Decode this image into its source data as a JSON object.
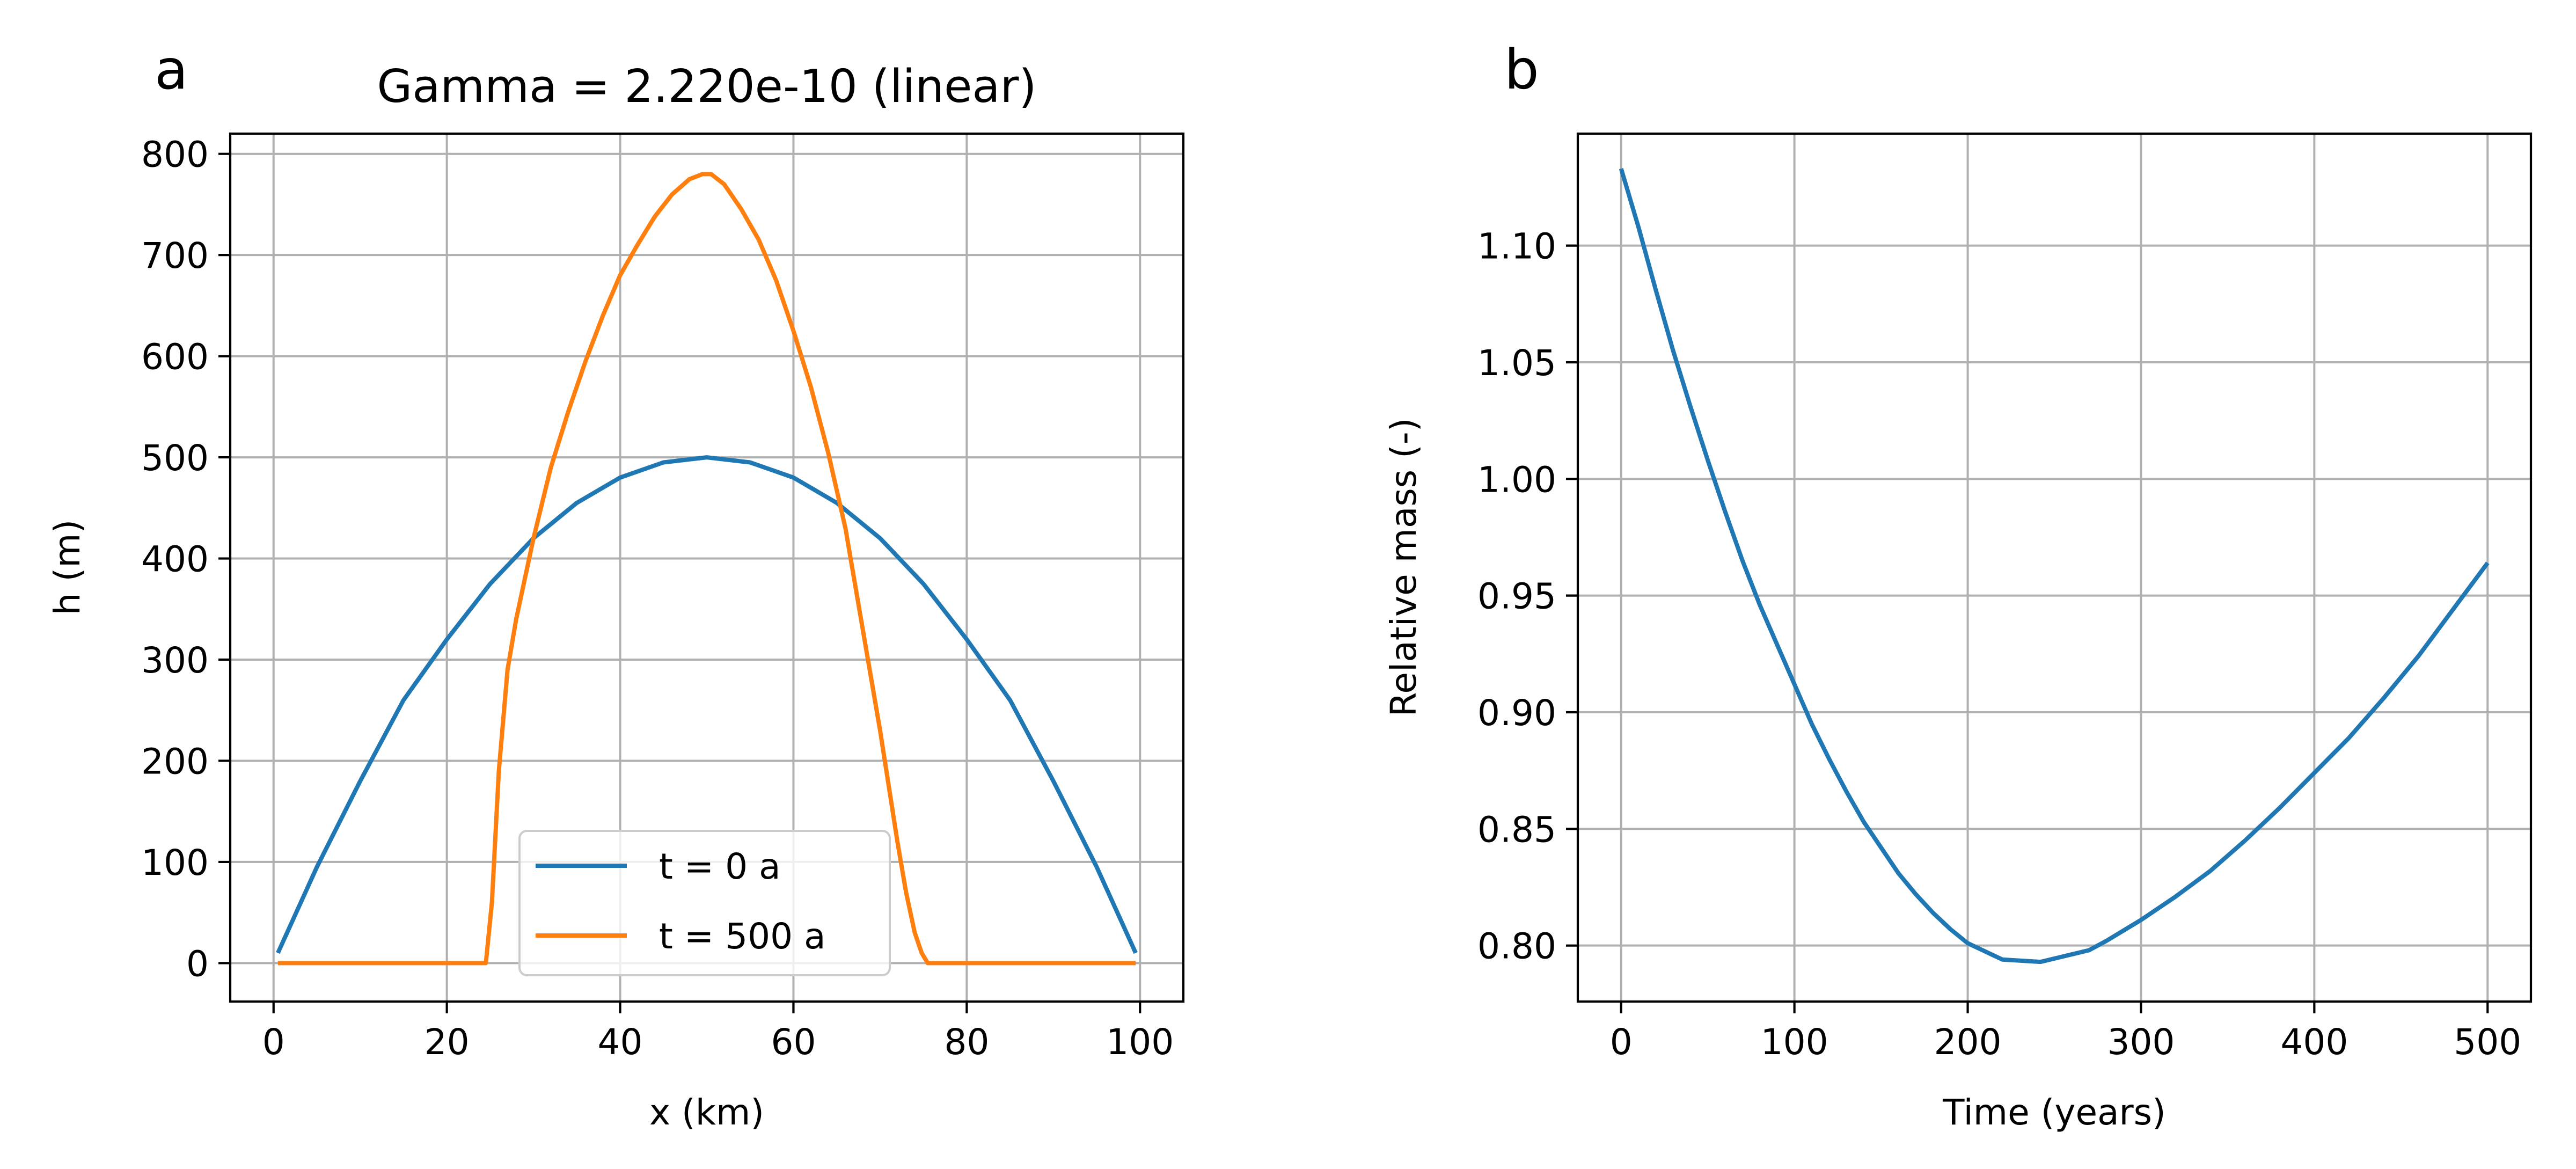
{
  "chart_data": [
    {
      "panel_letter": "a",
      "type": "line",
      "title": "Gamma = 2.220e-10 (linear)",
      "xlabel": "x (km)",
      "ylabel": "h (m)",
      "xlim": [
        -5,
        105
      ],
      "ylim": [
        -38,
        820
      ],
      "xticks": [
        0,
        20,
        40,
        60,
        80,
        100
      ],
      "yticks": [
        0,
        100,
        200,
        300,
        400,
        500,
        600,
        700,
        800
      ],
      "grid": true,
      "legend_position": "lower center",
      "series": [
        {
          "name": "t = 0 a",
          "color": "#1f77b4",
          "x": [
            0.5,
            5,
            10,
            15,
            20,
            25,
            30,
            35,
            40,
            45,
            50,
            55,
            60,
            65,
            70,
            75,
            80,
            85,
            90,
            95,
            99.5
          ],
          "y": [
            10,
            95,
            180,
            260,
            320,
            375,
            420,
            455,
            480,
            495,
            500,
            495,
            480,
            455,
            420,
            375,
            320,
            260,
            180,
            95,
            10
          ]
        },
        {
          "name": "t = 500 a",
          "color": "#ff7f0e",
          "x": [
            0.5,
            10,
            20,
            24.5,
            25.2,
            26,
            27,
            28,
            30,
            32,
            34,
            36,
            38,
            40,
            42,
            44,
            46,
            48,
            49.5,
            50.5,
            52,
            54,
            56,
            58,
            60,
            62,
            64,
            66,
            68,
            70,
            72,
            73,
            74,
            74.8,
            75.5,
            80,
            90,
            99.5
          ],
          "y": [
            0,
            0,
            0,
            0,
            60,
            190,
            290,
            340,
            420,
            490,
            545,
            595,
            640,
            680,
            710,
            738,
            760,
            775,
            780,
            780,
            770,
            745,
            715,
            675,
            625,
            570,
            505,
            430,
            330,
            230,
            120,
            70,
            30,
            10,
            0,
            0,
            0,
            0
          ]
        }
      ]
    },
    {
      "panel_letter": "b",
      "type": "line",
      "title": "",
      "xlabel": "Time (years)",
      "ylabel": "Relative mass (-)",
      "xlim": [
        -25,
        525
      ],
      "ylim": [
        0.776,
        1.148
      ],
      "xticks": [
        0,
        100,
        200,
        300,
        400,
        500
      ],
      "yticks": [
        "0.80",
        "0.85",
        "0.90",
        "0.95",
        "1.00",
        "1.05",
        "1.10"
      ],
      "grid": true,
      "series": [
        {
          "name": "",
          "color": "#1f77b4",
          "x": [
            0,
            10,
            20,
            30,
            40,
            50,
            60,
            70,
            80,
            90,
            100,
            110,
            120,
            130,
            140,
            150,
            160,
            170,
            180,
            190,
            200,
            220,
            242,
            270,
            280,
            300,
            320,
            340,
            360,
            380,
            400,
            420,
            440,
            460,
            480,
            500
          ],
          "y": [
            1.133,
            1.108,
            1.081,
            1.055,
            1.031,
            1.008,
            0.986,
            0.965,
            0.946,
            0.929,
            0.912,
            0.895,
            0.88,
            0.866,
            0.853,
            0.842,
            0.831,
            0.822,
            0.814,
            0.807,
            0.801,
            0.794,
            0.793,
            0.798,
            0.802,
            0.811,
            0.821,
            0.832,
            0.845,
            0.859,
            0.874,
            0.889,
            0.906,
            0.924,
            0.944,
            0.964
          ]
        }
      ]
    }
  ]
}
